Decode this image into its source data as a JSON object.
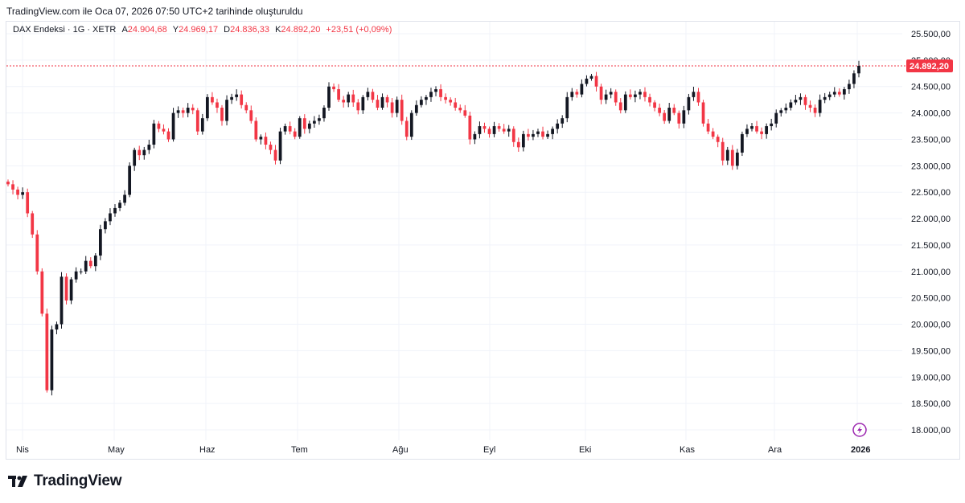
{
  "caption": "TradingView.com ile Oca 07, 2026 07:50 UTC+2 tarihinde oluşturuldu",
  "legend": {
    "symbol": "DAX Endeksi · 1G · XETR",
    "open_label": "A",
    "open": "24.904,68",
    "high_label": "Y",
    "high": "24.969,17",
    "low_label": "D",
    "low": "24.836,33",
    "close_label": "K",
    "close": "24.892,20",
    "change": "+23,51 (+0,09%)"
  },
  "logo_text": "TradingView",
  "colors": {
    "up": "#131722",
    "down": "#f23645",
    "grid": "#f0f3fa",
    "price_line": "#f23645",
    "lightning": "#9c27b0"
  },
  "chart_data": {
    "type": "candlestick",
    "ylim": [
      18000,
      25500
    ],
    "y_ticks": [
      "25.500,00",
      "25.000,00",
      "24.500,00",
      "24.000,00",
      "23.500,00",
      "23.000,00",
      "22.500,00",
      "22.000,00",
      "21.500,00",
      "21.000,00",
      "20.500,00",
      "20.000,00",
      "19.500,00",
      "19.000,00",
      "18.500,00",
      "18.000,00"
    ],
    "y_tick_values": [
      25500,
      25000,
      24500,
      24000,
      23500,
      23000,
      22500,
      22000,
      21500,
      21000,
      20500,
      20000,
      19500,
      19000,
      18500,
      18000
    ],
    "x_ticks": [
      "Nis",
      "May",
      "Haz",
      "Tem",
      "Ağu",
      "Eyl",
      "Eki",
      "Kas",
      "Ara",
      "2026"
    ],
    "last_price": 24892.2,
    "last_price_label": "24.892,20",
    "closes": [
      22650,
      22550,
      22450,
      22500,
      22100,
      21700,
      21000,
      20200,
      18750,
      19900,
      20000,
      20900,
      20450,
      20850,
      21000,
      21000,
      21200,
      21100,
      21300,
      21800,
      21950,
      22100,
      22200,
      22300,
      22450,
      23000,
      23300,
      23200,
      23300,
      23400,
      23800,
      23700,
      23650,
      23500,
      24000,
      24050,
      24000,
      24100,
      24050,
      23650,
      23900,
      24300,
      24200,
      24100,
      23850,
      24250,
      24300,
      24350,
      24150,
      24050,
      23850,
      23500,
      23550,
      23400,
      23300,
      23100,
      23650,
      23750,
      23650,
      23550,
      23900,
      23700,
      23800,
      23850,
      23900,
      24100,
      24500,
      24450,
      24250,
      24200,
      24350,
      24200,
      24050,
      24300,
      24400,
      24250,
      24100,
      24300,
      24200,
      24000,
      24250,
      23850,
      23550,
      24000,
      24150,
      24250,
      24300,
      24400,
      24450,
      24300,
      24250,
      24200,
      24100,
      24050,
      23950,
      23500,
      23600,
      23750,
      23700,
      23600,
      23750,
      23700,
      23650,
      23700,
      23450,
      23350,
      23600,
      23550,
      23600,
      23650,
      23550,
      23600,
      23700,
      23800,
      23900,
      24300,
      24400,
      24350,
      24550,
      24650,
      24700,
      24500,
      24250,
      24350,
      24400,
      24200,
      24050,
      24350,
      24300,
      24350,
      24400,
      24300,
      24200,
      24100,
      24000,
      23850,
      24100,
      24000,
      23800,
      24050,
      24300,
      24400,
      24200,
      23800,
      23650,
      23550,
      23450,
      23100,
      23300,
      23000,
      23250,
      23600,
      23700,
      23750,
      23650,
      23600,
      23750,
      23800,
      24000,
      24050,
      24100,
      24200,
      24250,
      24300,
      24150,
      24100,
      24000,
      24250,
      24300,
      24350,
      24400,
      24350,
      24450,
      24550,
      24750,
      24892.2
    ]
  }
}
